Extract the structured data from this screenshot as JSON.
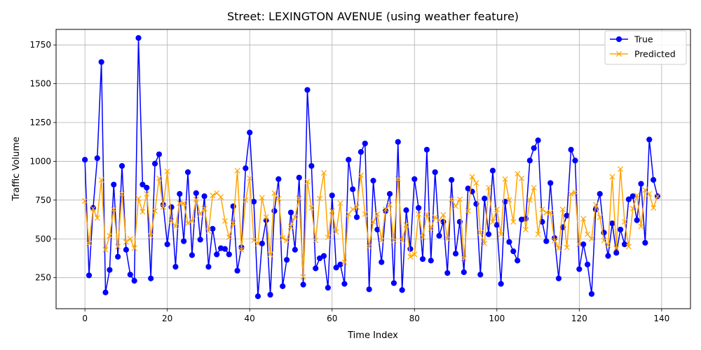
{
  "chart_data": {
    "type": "line",
    "title": "Street: LEXINGTON AVENUE (using weather feature)",
    "xlabel": "Time Index",
    "ylabel": "Traffic Volume",
    "xlim": [
      -7,
      147
    ],
    "ylim": [
      50,
      1850
    ],
    "xticks": [
      0,
      20,
      40,
      60,
      80,
      100,
      120,
      140
    ],
    "yticks": [
      250,
      500,
      750,
      1000,
      1250,
      1500,
      1750
    ],
    "grid": true,
    "legend_position": "upper-right",
    "series": [
      {
        "name": "True",
        "color": "#0000ff",
        "marker": "circle",
        "values": [
          1010,
          265,
          700,
          1020,
          1640,
          155,
          300,
          850,
          385,
          970,
          430,
          270,
          230,
          1795,
          850,
          830,
          245,
          985,
          1045,
          720,
          465,
          705,
          320,
          790,
          485,
          930,
          395,
          795,
          495,
          775,
          320,
          565,
          400,
          440,
          435,
          400,
          710,
          295,
          445,
          955,
          1185,
          740,
          130,
          470,
          620,
          140,
          680,
          885,
          195,
          365,
          670,
          430,
          895,
          205,
          1460,
          970,
          310,
          375,
          390,
          185,
          780,
          315,
          335,
          210,
          1010,
          820,
          640,
          1060,
          1115,
          175,
          875,
          560,
          350,
          680,
          790,
          215,
          1125,
          170,
          685,
          435,
          885,
          700,
          370,
          1075,
          360,
          930,
          520,
          610,
          280,
          880,
          405,
          610,
          285,
          825,
          805,
          725,
          270,
          760,
          530,
          940,
          590,
          210,
          740,
          480,
          420,
          360,
          625,
          630,
          1005,
          1085,
          1135,
          610,
          485,
          860,
          505,
          245,
          575,
          650,
          1075,
          1005,
          305,
          465,
          335,
          145,
          690,
          790,
          540,
          390,
          600,
          410,
          560,
          465,
          755,
          775,
          620,
          855,
          475,
          1140,
          880,
          775
        ]
      },
      {
        "name": "Predicted",
        "color": "#ffa500",
        "marker": "x",
        "values": [
          745,
          470,
          695,
          635,
          880,
          430,
          520,
          690,
          450,
          790,
          480,
          500,
          440,
          760,
          675,
          790,
          520,
          680,
          890,
          705,
          935,
          615,
          580,
          730,
          730,
          600,
          615,
          755,
          660,
          695,
          550,
          780,
          795,
          770,
          615,
          510,
          600,
          940,
          430,
          750,
          890,
          490,
          470,
          765,
          640,
          400,
          795,
          760,
          505,
          490,
          580,
          640,
          760,
          255,
          870,
          700,
          490,
          760,
          925,
          510,
          680,
          545,
          730,
          350,
          660,
          690,
          705,
          910,
          660,
          450,
          610,
          660,
          490,
          690,
          720,
          490,
          885,
          490,
          590,
          385,
          400,
          660,
          510,
          660,
          565,
          640,
          620,
          655,
          500,
          755,
          710,
          755,
          375,
          680,
          900,
          860,
          540,
          470,
          830,
          610,
          690,
          530,
          885,
          750,
          610,
          920,
          890,
          560,
          750,
          830,
          530,
          690,
          670,
          670,
          490,
          440,
          690,
          445,
          790,
          800,
          465,
          630,
          530,
          500,
          720,
          640,
          490,
          460,
          900,
          440,
          950,
          610,
          450,
          695,
          780,
          580,
          815,
          790,
          700,
          775
        ]
      }
    ]
  }
}
